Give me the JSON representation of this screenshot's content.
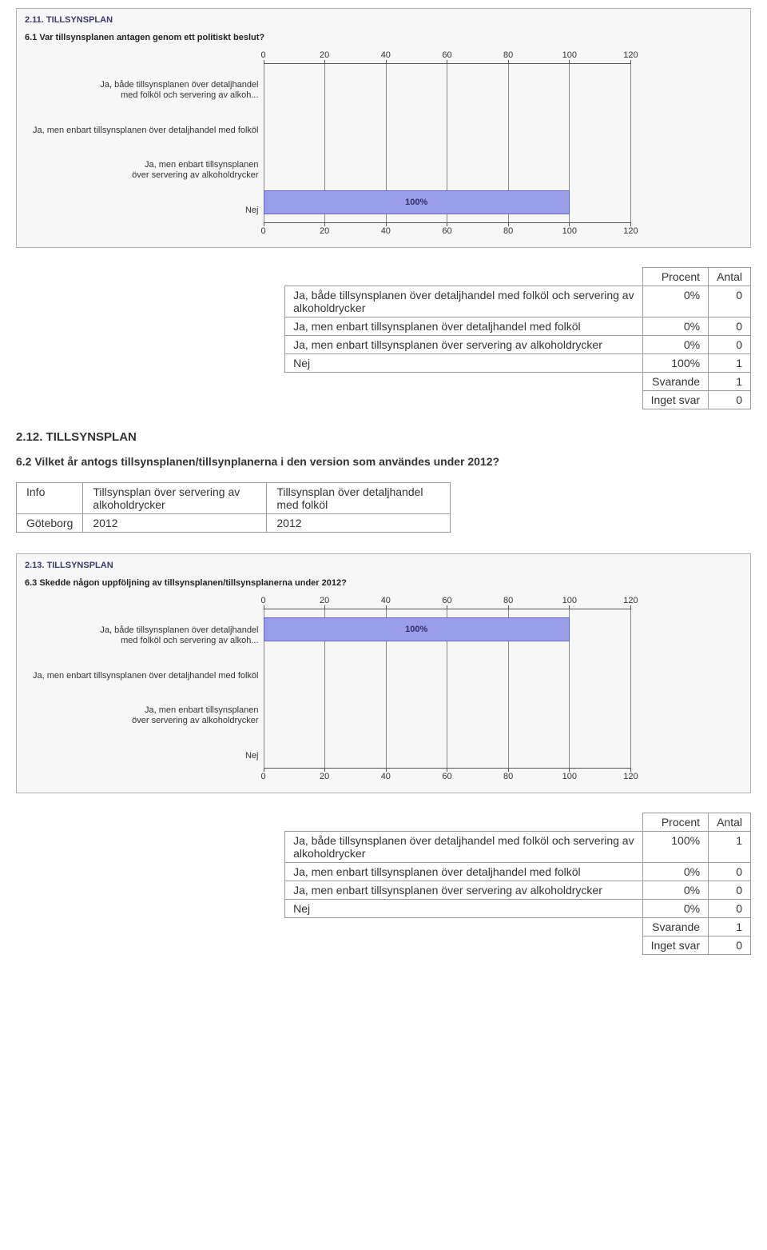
{
  "chart1": {
    "panel_title": "2.11. TILLSYNSPLAN",
    "question": "6.1 Var tillsynsplanen antagen genom ett politiskt beslut?",
    "xticks": [
      "0",
      "20",
      "40",
      "60",
      "80",
      "100",
      "120"
    ],
    "xmax": 120,
    "categories": [
      {
        "lines": [
          "Ja, både tillsynsplanen över detaljhandel",
          "med folköl och servering av alkoh..."
        ],
        "value": 0,
        "label": ""
      },
      {
        "lines": [
          "Ja, men enbart tillsynsplanen över detaljhandel med folköl"
        ],
        "value": 0,
        "label": ""
      },
      {
        "lines": [
          "Ja, men enbart tillsynsplanen",
          "över servering av alkoholdrycker"
        ],
        "value": 0,
        "label": ""
      },
      {
        "lines": [
          "Nej"
        ],
        "value": 100,
        "label": "100%"
      }
    ],
    "bar_color": "#9a9ee8",
    "bar_border": "#6366c4",
    "grid_color": "#888",
    "axis_color": "#555",
    "bg": "#f7f7f7"
  },
  "table1": {
    "head_procent": "Procent",
    "head_antal": "Antal",
    "rows": [
      {
        "label_l1": "Ja, både tillsynsplanen över detaljhandel med folköl och servering av",
        "label_l2": "alkoholdrycker",
        "procent": "0%",
        "antal": "0"
      },
      {
        "label_l1": "Ja, men enbart tillsynsplanen över detaljhandel med folköl",
        "label_l2": "",
        "procent": "0%",
        "antal": "0"
      },
      {
        "label_l1": "Ja, men enbart tillsynsplanen över servering av alkoholdrycker",
        "label_l2": "",
        "procent": "0%",
        "antal": "0"
      },
      {
        "label_l1": "Nej",
        "label_l2": "",
        "procent": "100%",
        "antal": "1"
      }
    ],
    "svarande_label": "Svarande",
    "svarande_val": "1",
    "inget_label": "Inget svar",
    "inget_val": "0"
  },
  "section212": {
    "title": "2.12. TILLSYNSPLAN",
    "question": "6.2 Vilket år antogs tillsynsplanen/tillsynplanerna i den version som användes under 2012?"
  },
  "info_table": {
    "h_info": "Info",
    "h_col1": "Tillsynsplan över servering av alkoholdrycker",
    "h_col2": "Tillsynsplan över detaljhandel med folköl",
    "row_city": "Göteborg",
    "row_v1": "2012",
    "row_v2": "2012"
  },
  "chart2": {
    "panel_title": "2.13. TILLSYNSPLAN",
    "question": "6.3 Skedde någon uppföljning av tillsynsplanen/tillsynsplanerna under 2012?",
    "xticks": [
      "0",
      "20",
      "40",
      "60",
      "80",
      "100",
      "120"
    ],
    "xmax": 120,
    "categories": [
      {
        "lines": [
          "Ja, både tillsynsplanen över detaljhandel",
          "med folköl och servering av alkoh..."
        ],
        "value": 100,
        "label": "100%"
      },
      {
        "lines": [
          "Ja, men enbart tillsynsplanen över detaljhandel med folköl"
        ],
        "value": 0,
        "label": ""
      },
      {
        "lines": [
          "Ja, men enbart tillsynsplanen",
          "över servering av alkoholdrycker"
        ],
        "value": 0,
        "label": ""
      },
      {
        "lines": [
          "Nej"
        ],
        "value": 0,
        "label": ""
      }
    ],
    "bar_color": "#9a9ee8",
    "bar_border": "#6366c4"
  },
  "table2": {
    "head_procent": "Procent",
    "head_antal": "Antal",
    "rows": [
      {
        "label_l1": "Ja, både tillsynsplanen över detaljhandel med folköl och servering av",
        "label_l2": "alkoholdrycker",
        "procent": "100%",
        "antal": "1"
      },
      {
        "label_l1": "Ja, men enbart tillsynsplanen över detaljhandel med folköl",
        "label_l2": "",
        "procent": "0%",
        "antal": "0"
      },
      {
        "label_l1": "Ja, men enbart tillsynsplanen över servering av alkoholdrycker",
        "label_l2": "",
        "procent": "0%",
        "antal": "0"
      },
      {
        "label_l1": "Nej",
        "label_l2": "",
        "procent": "0%",
        "antal": "0"
      }
    ],
    "svarande_label": "Svarande",
    "svarande_val": "1",
    "inget_label": "Inget svar",
    "inget_val": "0"
  }
}
